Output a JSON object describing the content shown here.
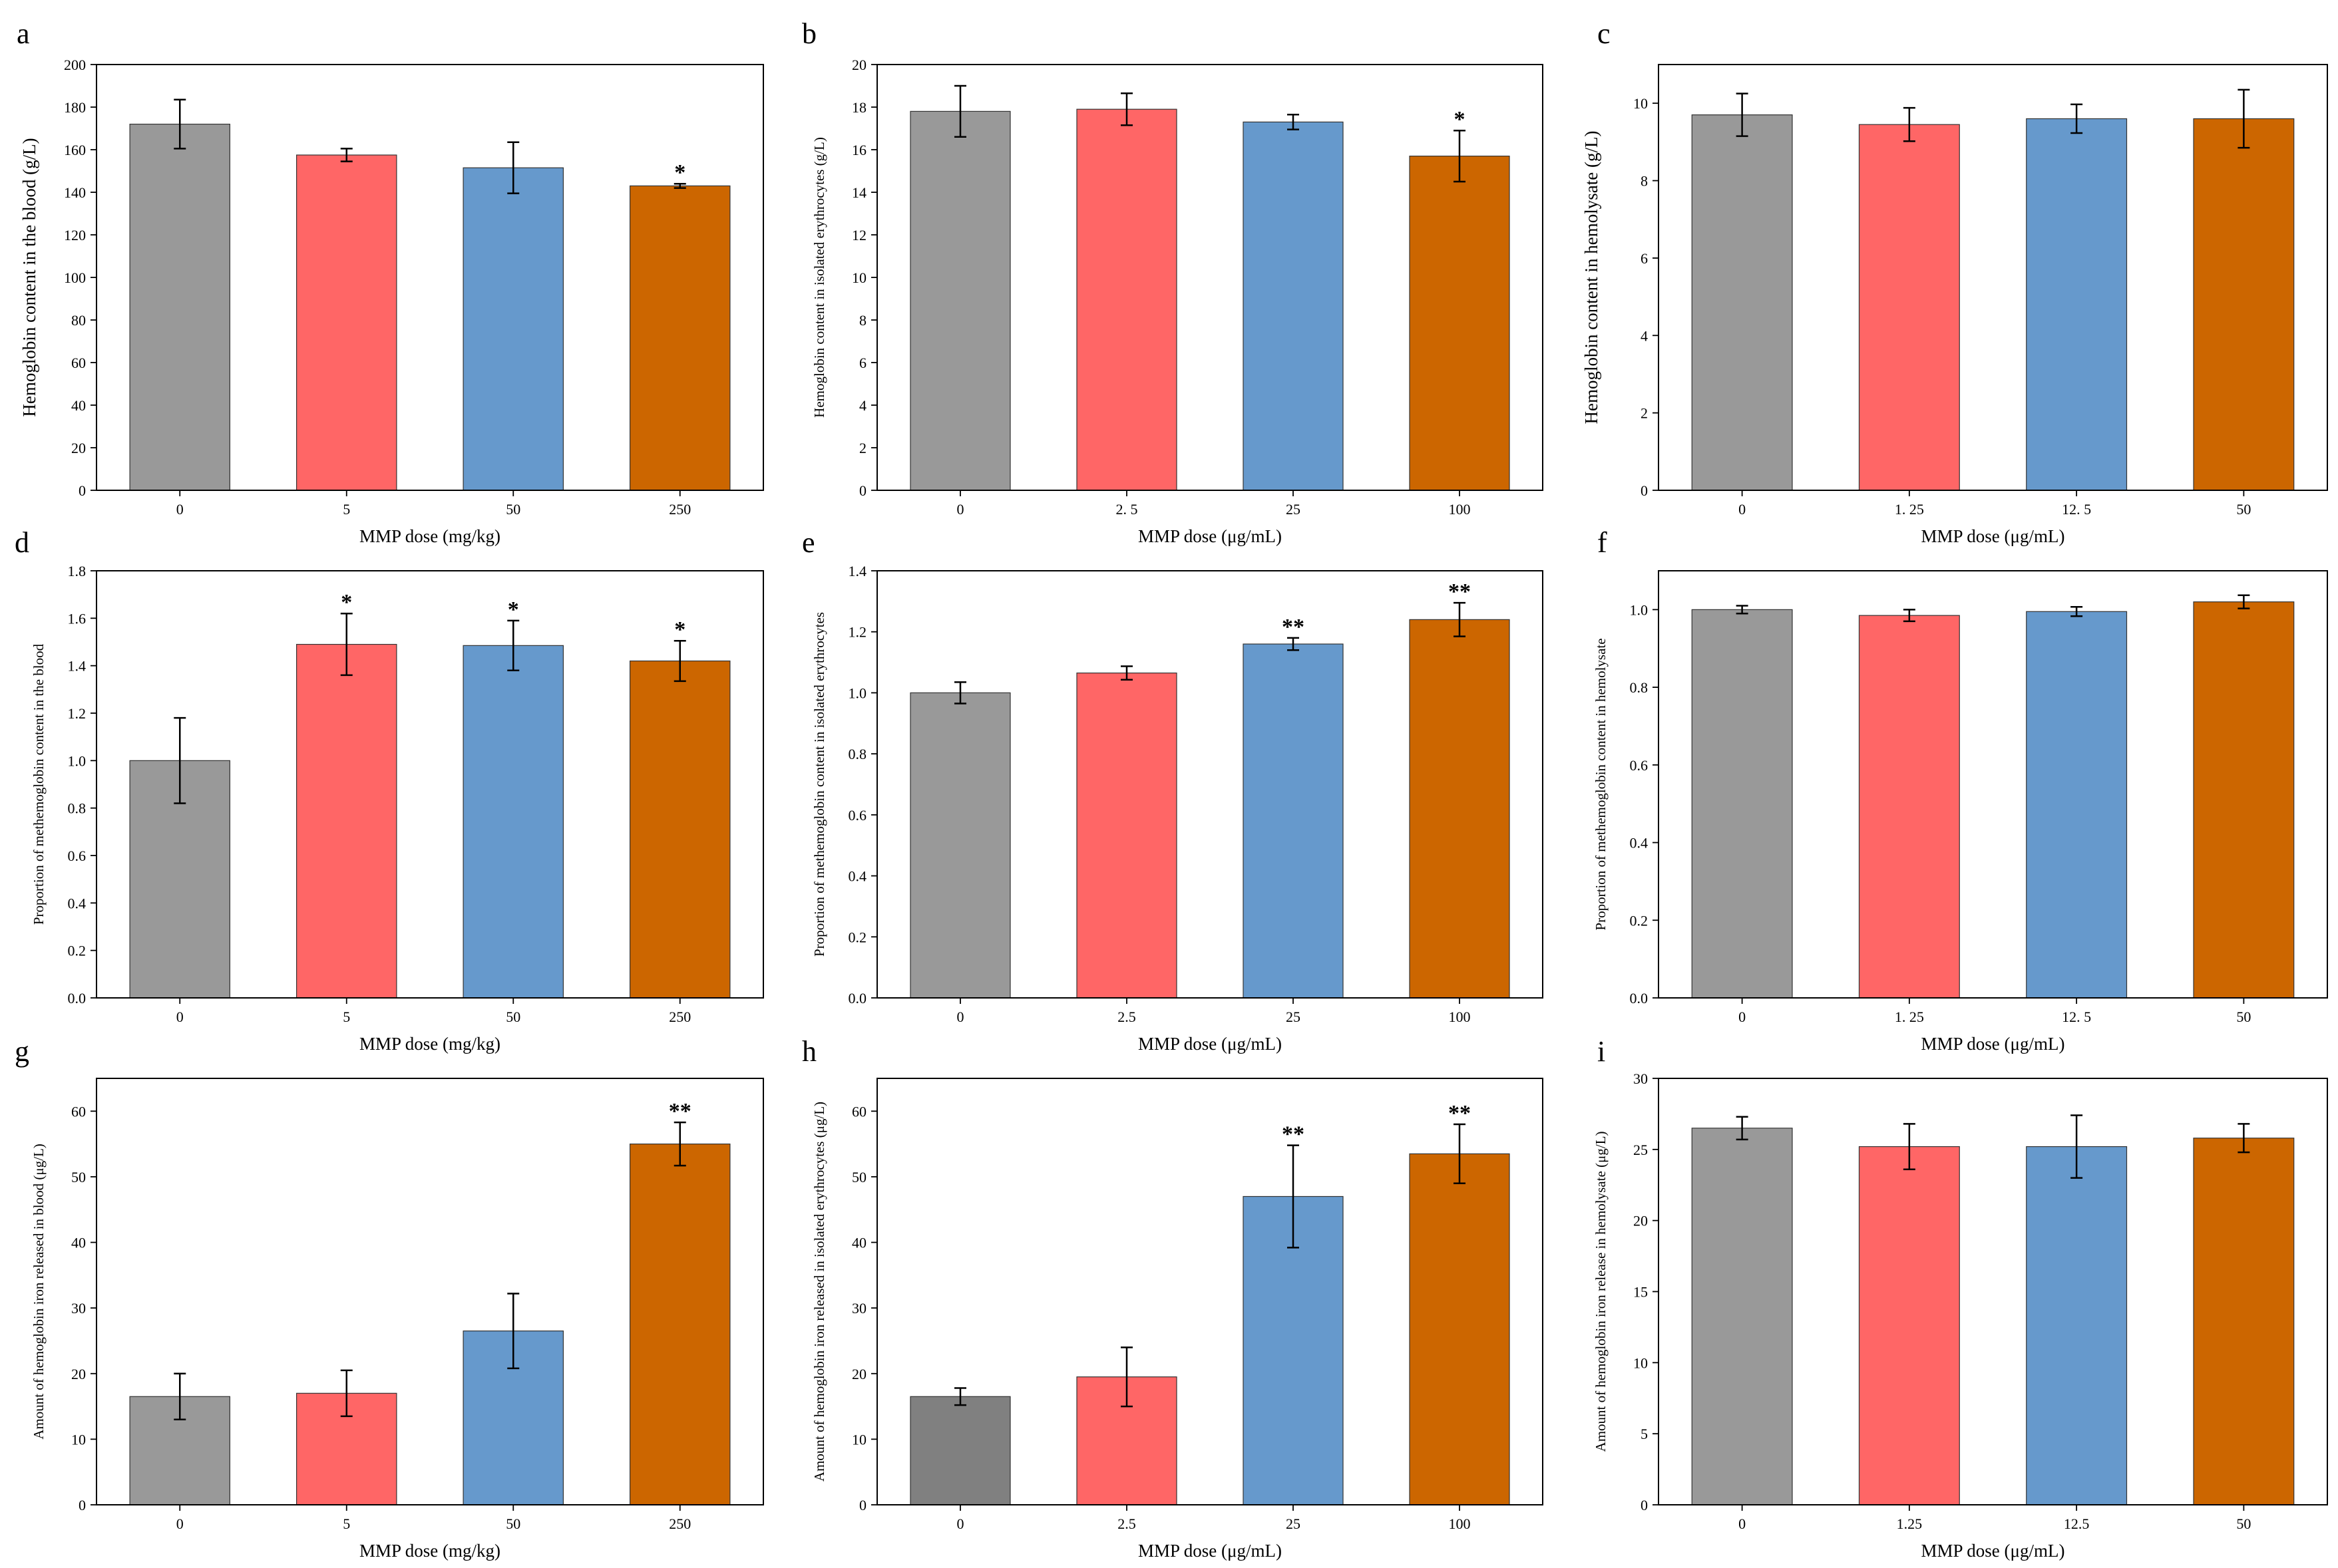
{
  "figure": {
    "colors": {
      "0": "#999999",
      "1": "#ff6666",
      "2": "#6699cc",
      "3": "#cc6600",
      "dark": "#808080"
    }
  },
  "chart_data": [
    {
      "id": "a",
      "letter": "a",
      "type": "bar",
      "title": "",
      "categories": [
        "0",
        "5",
        "50",
        "250"
      ],
      "values": [
        172,
        157.5,
        151.5,
        143
      ],
      "errors": [
        11.5,
        3,
        12,
        1
      ],
      "sig": [
        "",
        "",
        "",
        "*"
      ],
      "xlabel": "MMP dose (mg/kg)",
      "ylabel": "Hemoglobin content in the blood (g/L)",
      "ylim": [
        0,
        200
      ],
      "yticks": [
        "0",
        "20",
        "40",
        "60",
        "80",
        "100",
        "120",
        "140",
        "160",
        "180",
        "200"
      ],
      "colors": [
        "#999999",
        "#ff6666",
        "#6699cc",
        "#cc6600"
      ]
    },
    {
      "id": "b",
      "letter": "b",
      "type": "bar",
      "title": "",
      "categories": [
        "0",
        "2. 5",
        "25",
        "100"
      ],
      "values": [
        17.8,
        17.9,
        17.3,
        15.7
      ],
      "errors": [
        1.2,
        0.75,
        0.35,
        1.2
      ],
      "sig": [
        "",
        "",
        "",
        "*"
      ],
      "xlabel": "MMP dose (μg/mL)",
      "ylabel": "Hemoglobin content in isolated erythrocytes (g/L)",
      "ylim": [
        0,
        20
      ],
      "yticks": [
        "0",
        "2",
        "4",
        "6",
        "8",
        "10",
        "12",
        "14",
        "16",
        "18",
        "20"
      ],
      "colors": [
        "#999999",
        "#ff6666",
        "#6699cc",
        "#cc6600"
      ]
    },
    {
      "id": "c",
      "letter": "c",
      "type": "bar",
      "title": "",
      "categories": [
        "0",
        "1. 25",
        "12. 5",
        "50"
      ],
      "values": [
        9.7,
        9.45,
        9.6,
        9.6
      ],
      "errors": [
        0.55,
        0.43,
        0.37,
        0.75
      ],
      "sig": [
        "",
        "",
        "",
        ""
      ],
      "xlabel": "MMP dose (μg/mL)",
      "ylabel": "Hemoglobin content in  hemolysate (g/L)",
      "ylim": [
        0,
        11
      ],
      "yticks": [
        "0",
        "2",
        "4",
        "6",
        "8",
        "10"
      ],
      "colors": [
        "#999999",
        "#ff6666",
        "#6699cc",
        "#cc6600"
      ]
    },
    {
      "id": "d",
      "letter": "d",
      "type": "bar",
      "title": "",
      "categories": [
        "0",
        "5",
        "50",
        "250"
      ],
      "values": [
        1.0,
        1.49,
        1.485,
        1.42
      ],
      "errors": [
        0.18,
        0.13,
        0.105,
        0.085
      ],
      "sig": [
        "",
        "*",
        "*",
        "*"
      ],
      "xlabel": "MMP dose (mg/kg)",
      "ylabel": "Proportion of methemoglobin content in the blood",
      "ylim": [
        0,
        1.8
      ],
      "yticks": [
        "0.0",
        "0.2",
        "0.4",
        "0.6",
        "0.8",
        "1.0",
        "1.2",
        "1.4",
        "1.6",
        "1.8"
      ],
      "colors": [
        "#999999",
        "#ff6666",
        "#6699cc",
        "#cc6600"
      ]
    },
    {
      "id": "e",
      "letter": "e",
      "type": "bar",
      "title": "",
      "categories": [
        "0",
        "2.5",
        "25",
        "100"
      ],
      "values": [
        1.0,
        1.065,
        1.16,
        1.24
      ],
      "errors": [
        0.035,
        0.022,
        0.02,
        0.055
      ],
      "sig": [
        "",
        "",
        "**",
        "**"
      ],
      "xlabel": "MMP dose (μg/mL)",
      "ylabel": "Proportion of methemoglobin content  in isolated erythrocytes",
      "ylim": [
        0,
        1.4
      ],
      "yticks": [
        "0.0",
        "0.2",
        "0.4",
        "0.6",
        "0.8",
        "1.0",
        "1.2",
        "1.4"
      ],
      "colors": [
        "#999999",
        "#ff6666",
        "#6699cc",
        "#cc6600"
      ]
    },
    {
      "id": "f",
      "letter": "f",
      "type": "bar",
      "title": "",
      "categories": [
        "0",
        "1. 25",
        "12. 5",
        "50"
      ],
      "values": [
        1.0,
        0.985,
        0.995,
        1.02
      ],
      "errors": [
        0.01,
        0.015,
        0.012,
        0.017
      ],
      "sig": [
        "",
        "",
        "",
        ""
      ],
      "xlabel": "MMP dose (μg/mL)",
      "ylabel": "Proportion of methemoglobin content  in hemolysate",
      "ylim": [
        0,
        1.1
      ],
      "yticks": [
        "0.0",
        "0.2",
        "0.4",
        "0.6",
        "0.8",
        "1.0"
      ],
      "colors": [
        "#999999",
        "#ff6666",
        "#6699cc",
        "#cc6600"
      ]
    },
    {
      "id": "g",
      "letter": "g",
      "type": "bar",
      "title": "",
      "categories": [
        "0",
        "5",
        "50",
        "250"
      ],
      "values": [
        16.5,
        17,
        26.5,
        55
      ],
      "errors": [
        3.5,
        3.5,
        5.7,
        3.3
      ],
      "sig": [
        "",
        "",
        "",
        "**"
      ],
      "xlabel": "MMP dose (mg/kg)",
      "ylabel": "Amount of hemoglobin iron released in blood (μg/L)",
      "ylim": [
        0,
        65
      ],
      "yticks": [
        "0",
        "10",
        "20",
        "30",
        "40",
        "50",
        "60"
      ],
      "colors": [
        "#999999",
        "#ff6666",
        "#6699cc",
        "#cc6600"
      ]
    },
    {
      "id": "h",
      "letter": "h",
      "type": "bar",
      "title": "",
      "categories": [
        "0",
        "2.5",
        "25",
        "100"
      ],
      "values": [
        16.5,
        19.5,
        47,
        53.5
      ],
      "errors": [
        1.3,
        4.5,
        7.8,
        4.5
      ],
      "sig": [
        "",
        "",
        "**",
        "**"
      ],
      "xlabel": "MMP dose (μg/mL)",
      "ylabel": "Amount of hemoglobin iron released in isolated erythrocytes (μg/L)",
      "ylim": [
        0,
        65
      ],
      "yticks": [
        "0",
        "10",
        "20",
        "30",
        "40",
        "50",
        "60"
      ],
      "colors": [
        "#808080",
        "#ff6666",
        "#6699cc",
        "#cc6600"
      ]
    },
    {
      "id": "i",
      "letter": "i",
      "type": "bar",
      "title": "",
      "categories": [
        "0",
        "1.25",
        "12.5",
        "50"
      ],
      "values": [
        26.5,
        25.2,
        25.2,
        25.8
      ],
      "errors": [
        0.8,
        1.6,
        2.2,
        1
      ],
      "sig": [
        "",
        "",
        "",
        ""
      ],
      "xlabel": "MMP dose (μg/mL)",
      "ylabel": "Amount of hemoglobin iron release in hemolysate (μg/L)",
      "ylim": [
        0,
        30
      ],
      "yticks": [
        "0",
        "5",
        "10",
        "15",
        "20",
        "25",
        "30"
      ],
      "colors": [
        "#999999",
        "#ff6666",
        "#6699cc",
        "#cc6600"
      ]
    }
  ]
}
